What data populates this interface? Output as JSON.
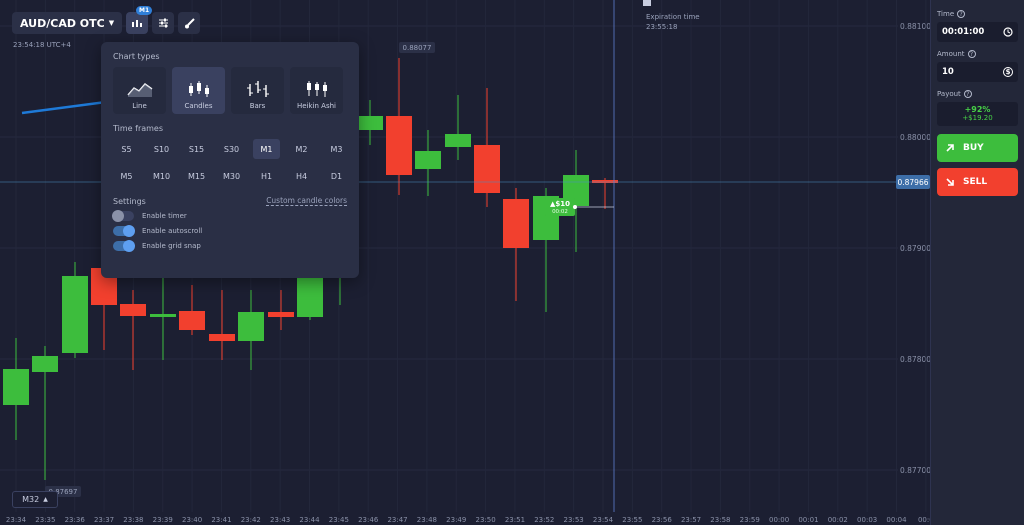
{
  "header": {
    "asset": "AUD/CAD OTC",
    "timeframe_badge": "M1",
    "server_time": "23:54:18 UTC+4"
  },
  "chart_menu": {
    "chart_types_title": "Chart types",
    "chart_types": [
      {
        "label": "Line",
        "active": false
      },
      {
        "label": "Candles",
        "active": true
      },
      {
        "label": "Bars",
        "active": false
      },
      {
        "label": "Heikin Ashi",
        "active": false
      }
    ],
    "time_frames_title": "Time frames",
    "time_frames": [
      "S5",
      "S10",
      "S15",
      "S30",
      "M1",
      "M2",
      "M3",
      "M5",
      "M10",
      "M15",
      "M30",
      "H1",
      "H4",
      "D1"
    ],
    "active_time_frame": "M1",
    "settings_title": "Settings",
    "custom_colors_link": "Custom candle colors",
    "toggles": [
      {
        "label": "Enable timer",
        "on": false
      },
      {
        "label": "Enable autoscroll",
        "on": true
      },
      {
        "label": "Enable grid snap",
        "on": true
      }
    ]
  },
  "expiration": {
    "title": "Expiration time",
    "time": "23:55:18"
  },
  "zoom_label": "M32",
  "chart_data": {
    "type": "candlestick",
    "price_axis": [
      "0.88100",
      "0.88000",
      "0.87900",
      "0.87800",
      "0.87700"
    ],
    "current_price": "0.87966",
    "high_label": "0.88077",
    "low_label": "0.87697",
    "time_axis": [
      "23:34",
      "23:35",
      "23:36",
      "23:37",
      "23:38",
      "23:39",
      "23:40",
      "23:41",
      "23:42",
      "23:43",
      "23:44",
      "23:45",
      "23:46",
      "23:47",
      "23:48",
      "23:49",
      "23:50",
      "23:51",
      "23:52",
      "23:53",
      "23:54",
      "23:55",
      "23:56",
      "23:57",
      "23:58",
      "23:59",
      "00:00",
      "00:01",
      "00:02",
      "00:03",
      "00:04",
      "00:0"
    ],
    "trade_marker": {
      "amount": "$10",
      "timer": "00:02"
    },
    "colors": {
      "up": "#3dbd3d",
      "down": "#f2402e",
      "background": "#1c1f32",
      "price_line": "#4a8fbf"
    }
  },
  "panel": {
    "time_label": "Time",
    "time_value": "00:01:00",
    "amount_label": "Amount",
    "amount_value": "10",
    "payout_label": "Payout",
    "payout_percent": "+92%",
    "payout_amount": "+$19.20",
    "buy_label": "BUY",
    "sell_label": "SELL"
  }
}
